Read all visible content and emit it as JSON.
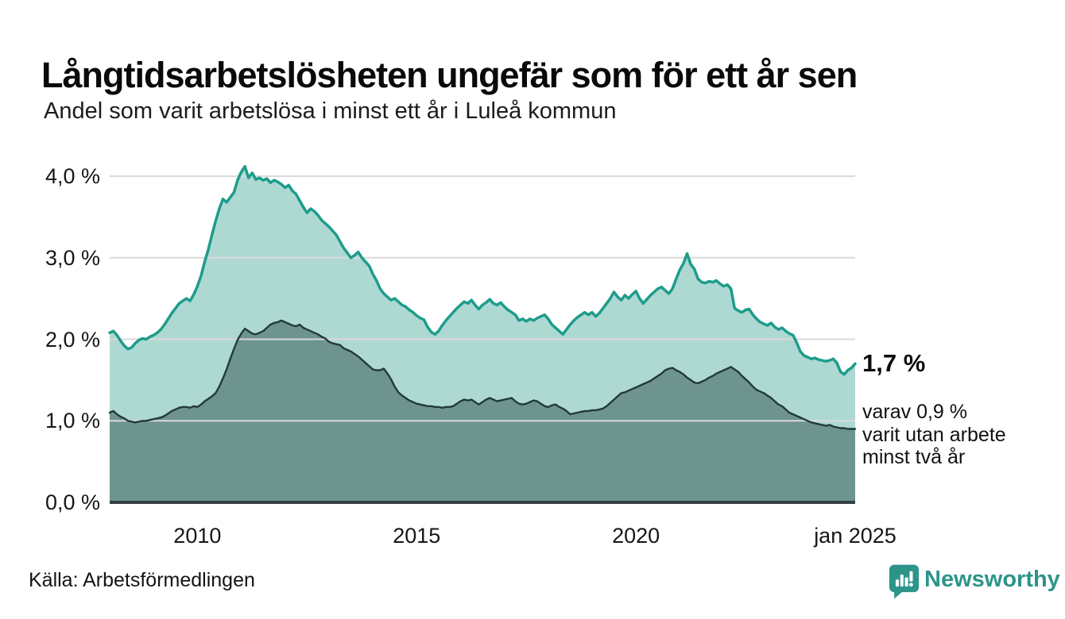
{
  "header": {
    "title": "Långtidsarbetslösheten ungefär som för ett år sen",
    "subtitle": "Andel som varit arbetslösa i minst ett år i Luleå kommun"
  },
  "annotation": {
    "value": "1,7 %",
    "value_y": 1.7,
    "note_lines": [
      "varav 0,9 %",
      "varit utan arbete",
      "minst två år"
    ]
  },
  "footer": {
    "source": "Källa: Arbetsförmedlingen",
    "brand": "Newsworthy",
    "brand_color": "#2d948a"
  },
  "chart_data": {
    "type": "area",
    "title": "Långtidsarbetslösheten ungefär som för ett år sen",
    "subtitle": "Andel som varit arbetslösa i minst ett år i Luleå kommun",
    "x_start": 2008,
    "x_end": 2025,
    "x_unit": "month",
    "ylim": [
      0,
      4.26
    ],
    "grid": true,
    "grid_color": "#d9d9d9",
    "axis_color": "#33413f",
    "y_ticks": [
      {
        "label": "0,0 %",
        "value": 0
      },
      {
        "label": "1,0 %",
        "value": 1
      },
      {
        "label": "2,0 %",
        "value": 2
      },
      {
        "label": "3,0 %",
        "value": 3
      },
      {
        "label": "4,0 %",
        "value": 4
      }
    ],
    "x_ticks": [
      {
        "label": "2010",
        "year": 2010
      },
      {
        "label": "2015",
        "year": 2015
      },
      {
        "label": "2020",
        "year": 2020
      },
      {
        "label": "jan 2025",
        "year": 2025
      }
    ],
    "series": [
      {
        "name": "Arbetslösa minst ett år",
        "data_name": "at-least-one-year",
        "color": "#1e9c8b",
        "fill": "rgba(70,168,155,0.44)",
        "stroke_width": 3.5,
        "latest_label": "1,7 %",
        "values": [
          2.08,
          2.1,
          2.05,
          1.98,
          1.92,
          1.88,
          1.9,
          1.95,
          1.99,
          2.01,
          2.0,
          2.03,
          2.05,
          2.08,
          2.12,
          2.18,
          2.25,
          2.32,
          2.38,
          2.44,
          2.47,
          2.5,
          2.47,
          2.55,
          2.65,
          2.78,
          2.95,
          3.1,
          3.28,
          3.45,
          3.6,
          3.72,
          3.68,
          3.74,
          3.8,
          3.95,
          4.05,
          4.12,
          3.98,
          4.04,
          3.96,
          3.98,
          3.95,
          3.97,
          3.92,
          3.95,
          3.93,
          3.9,
          3.86,
          3.89,
          3.82,
          3.78,
          3.7,
          3.62,
          3.55,
          3.6,
          3.57,
          3.52,
          3.46,
          3.42,
          3.38,
          3.33,
          3.28,
          3.2,
          3.12,
          3.06,
          3.0,
          3.03,
          3.07,
          3.0,
          2.95,
          2.9,
          2.8,
          2.72,
          2.62,
          2.56,
          2.52,
          2.48,
          2.5,
          2.46,
          2.42,
          2.4,
          2.36,
          2.33,
          2.29,
          2.26,
          2.24,
          2.15,
          2.09,
          2.06,
          2.1,
          2.17,
          2.23,
          2.28,
          2.33,
          2.38,
          2.42,
          2.46,
          2.44,
          2.48,
          2.42,
          2.37,
          2.42,
          2.45,
          2.49,
          2.44,
          2.42,
          2.45,
          2.4,
          2.36,
          2.33,
          2.3,
          2.23,
          2.25,
          2.22,
          2.25,
          2.23,
          2.26,
          2.28,
          2.3,
          2.25,
          2.18,
          2.14,
          2.1,
          2.06,
          2.12,
          2.18,
          2.23,
          2.27,
          2.3,
          2.33,
          2.3,
          2.33,
          2.28,
          2.32,
          2.38,
          2.44,
          2.5,
          2.58,
          2.52,
          2.48,
          2.54,
          2.5,
          2.55,
          2.59,
          2.5,
          2.44,
          2.49,
          2.54,
          2.58,
          2.62,
          2.64,
          2.6,
          2.56,
          2.62,
          2.74,
          2.85,
          2.93,
          3.05,
          2.92,
          2.86,
          2.74,
          2.7,
          2.69,
          2.71,
          2.7,
          2.72,
          2.68,
          2.65,
          2.67,
          2.62,
          2.38,
          2.35,
          2.33,
          2.36,
          2.37,
          2.3,
          2.25,
          2.21,
          2.19,
          2.17,
          2.2,
          2.15,
          2.12,
          2.14,
          2.1,
          2.07,
          2.05,
          1.96,
          1.85,
          1.8,
          1.78,
          1.76,
          1.77,
          1.75,
          1.74,
          1.73,
          1.74,
          1.76,
          1.71,
          1.6,
          1.57,
          1.62,
          1.65,
          1.7
        ]
      },
      {
        "name": "Arbetslösa minst två år",
        "data_name": "at-least-two-years",
        "color": "#223b38",
        "fill": "rgba(22,53,49,0.42)",
        "stroke_width": 2.4,
        "latest_label": "0,9 %",
        "values": [
          1.1,
          1.12,
          1.08,
          1.05,
          1.03,
          1.0,
          0.99,
          0.98,
          0.99,
          1.0,
          1.0,
          1.01,
          1.02,
          1.03,
          1.04,
          1.06,
          1.09,
          1.12,
          1.14,
          1.16,
          1.17,
          1.17,
          1.16,
          1.18,
          1.17,
          1.2,
          1.24,
          1.27,
          1.3,
          1.34,
          1.42,
          1.52,
          1.63,
          1.76,
          1.88,
          1.99,
          2.07,
          2.13,
          2.1,
          2.07,
          2.06,
          2.08,
          2.1,
          2.14,
          2.18,
          2.2,
          2.21,
          2.23,
          2.21,
          2.19,
          2.17,
          2.16,
          2.18,
          2.14,
          2.12,
          2.1,
          2.08,
          2.06,
          2.03,
          2.01,
          1.97,
          1.95,
          1.94,
          1.93,
          1.89,
          1.87,
          1.85,
          1.82,
          1.79,
          1.75,
          1.71,
          1.67,
          1.63,
          1.62,
          1.62,
          1.64,
          1.58,
          1.51,
          1.42,
          1.35,
          1.31,
          1.28,
          1.25,
          1.23,
          1.21,
          1.2,
          1.19,
          1.18,
          1.18,
          1.17,
          1.17,
          1.16,
          1.17,
          1.17,
          1.18,
          1.21,
          1.24,
          1.26,
          1.25,
          1.26,
          1.23,
          1.2,
          1.23,
          1.26,
          1.28,
          1.26,
          1.24,
          1.25,
          1.26,
          1.27,
          1.28,
          1.24,
          1.21,
          1.2,
          1.21,
          1.23,
          1.25,
          1.24,
          1.21,
          1.18,
          1.17,
          1.19,
          1.2,
          1.17,
          1.15,
          1.12,
          1.08,
          1.09,
          1.1,
          1.11,
          1.12,
          1.12,
          1.13,
          1.13,
          1.14,
          1.15,
          1.18,
          1.22,
          1.26,
          1.3,
          1.34,
          1.35,
          1.37,
          1.39,
          1.41,
          1.43,
          1.45,
          1.47,
          1.49,
          1.52,
          1.55,
          1.58,
          1.62,
          1.64,
          1.65,
          1.62,
          1.6,
          1.57,
          1.53,
          1.5,
          1.47,
          1.46,
          1.48,
          1.5,
          1.53,
          1.55,
          1.58,
          1.6,
          1.62,
          1.64,
          1.66,
          1.63,
          1.6,
          1.55,
          1.51,
          1.47,
          1.42,
          1.38,
          1.36,
          1.34,
          1.31,
          1.28,
          1.24,
          1.2,
          1.18,
          1.14,
          1.1,
          1.08,
          1.06,
          1.04,
          1.02,
          1.0,
          0.98,
          0.97,
          0.96,
          0.95,
          0.94,
          0.95,
          0.93,
          0.92,
          0.91,
          0.91,
          0.9,
          0.9,
          0.9
        ]
      }
    ]
  }
}
